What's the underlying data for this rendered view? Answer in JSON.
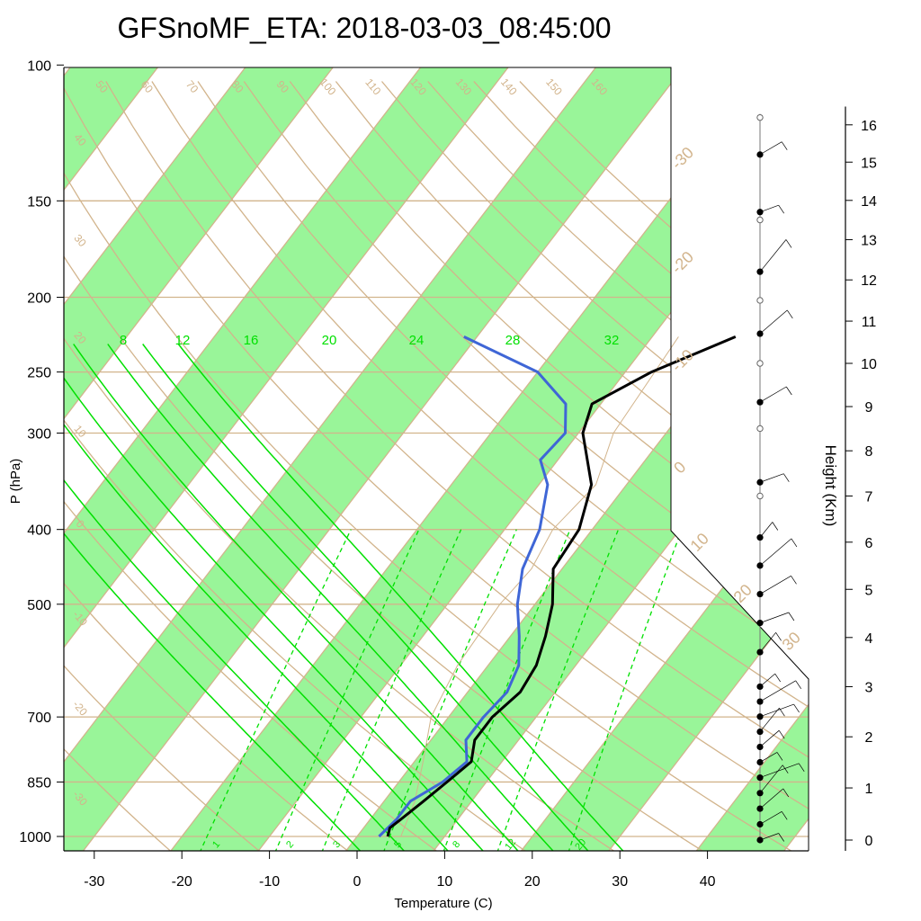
{
  "title": "GFSnoMF_ETA: 2018-03-03_08:45:00",
  "colors": {
    "band": "#99f599",
    "grid": "#d2b48c",
    "adiabat": "#00e000",
    "temperature": "#000000",
    "dewpoint": "#3f66d6",
    "wind": "#000000"
  },
  "chart_data": {
    "type": "skew-t log-p",
    "xlabel": "Temperature (C)",
    "ylabel": "P (hPa)",
    "y2label": "Height (Km)",
    "temp_ticks": [
      "-30",
      "-20",
      "-10",
      "0",
      "10",
      "20",
      "30",
      "40"
    ],
    "pressure_ticks": [
      "100",
      "150",
      "200",
      "250",
      "300",
      "400",
      "500",
      "700",
      "850",
      "1000"
    ],
    "height_ticks": [
      "0",
      "1",
      "2",
      "3",
      "4",
      "5",
      "6",
      "7",
      "8",
      "9",
      "10",
      "11",
      "12",
      "13",
      "14",
      "15",
      "16"
    ],
    "isotherm_labels_top": [
      "50",
      "60",
      "70",
      "80",
      "90",
      "100",
      "110",
      "120",
      "130",
      "140",
      "150",
      "160"
    ],
    "isotherm_labels_left": [
      "40",
      "30",
      "20",
      "10",
      "0",
      "-10",
      "-20",
      "-30"
    ],
    "isotherm_labels_right": [
      "-30",
      "-20",
      "-10",
      "0",
      "10",
      "20",
      "30"
    ],
    "moist_adiabat_labels": [
      "8",
      "12",
      "16",
      "20",
      "24",
      "28",
      "32"
    ],
    "mixing_ratio_labels": [
      "1",
      "2",
      "3",
      "5",
      "8",
      "12",
      "20"
    ],
    "pressure_range_hpa": [
      100,
      1050
    ],
    "temperature_range_c": [
      -34,
      36
    ],
    "log_pressure_axis": true,
    "temperature_profile": [
      {
        "p": 1000,
        "t": 3.5
      },
      {
        "p": 975,
        "t": 3.0
      },
      {
        "p": 950,
        "t": 3.5
      },
      {
        "p": 900,
        "t": 4.5
      },
      {
        "p": 850,
        "t": 5.5
      },
      {
        "p": 800,
        "t": 6.5
      },
      {
        "p": 750,
        "t": 5.0
      },
      {
        "p": 700,
        "t": 5.0
      },
      {
        "p": 650,
        "t": 6.0
      },
      {
        "p": 600,
        "t": 5.5
      },
      {
        "p": 550,
        "t": 4.0
      },
      {
        "p": 500,
        "t": 2.0
      },
      {
        "p": 450,
        "t": -1.0
      },
      {
        "p": 400,
        "t": -1.5
      },
      {
        "p": 350,
        "t": -4.0
      },
      {
        "p": 300,
        "t": -9.5
      },
      {
        "p": 275,
        "t": -11.0
      },
      {
        "p": 250,
        "t": -7.0
      },
      {
        "p": 225,
        "t": -0.5
      }
    ],
    "dewpoint_profile": [
      {
        "p": 1000,
        "t": 2.5
      },
      {
        "p": 950,
        "t": 3.0
      },
      {
        "p": 900,
        "t": 3.0
      },
      {
        "p": 850,
        "t": 5.0
      },
      {
        "p": 800,
        "t": 6.0
      },
      {
        "p": 750,
        "t": 4.0
      },
      {
        "p": 700,
        "t": 4.0
      },
      {
        "p": 650,
        "t": 4.5
      },
      {
        "p": 600,
        "t": 3.5
      },
      {
        "p": 550,
        "t": 1.0
      },
      {
        "p": 500,
        "t": -2.0
      },
      {
        "p": 450,
        "t": -4.5
      },
      {
        "p": 400,
        "t": -6.0
      },
      {
        "p": 350,
        "t": -9.0
      },
      {
        "p": 325,
        "t": -12.0
      },
      {
        "p": 300,
        "t": -11.5
      },
      {
        "p": 275,
        "t": -14.0
      },
      {
        "p": 250,
        "t": -20.0
      },
      {
        "p": 225,
        "t": -31.5
      }
    ],
    "parcel_profile": [
      {
        "p": 1000,
        "t": 5.0
      },
      {
        "p": 900,
        "t": 3.5
      },
      {
        "p": 800,
        "t": 1.0
      },
      {
        "p": 700,
        "t": -2.0
      },
      {
        "p": 600,
        "t": -3.5
      },
      {
        "p": 500,
        "t": -4.0
      },
      {
        "p": 450,
        "t": -3.5
      },
      {
        "p": 400,
        "t": -4.5
      },
      {
        "p": 350,
        "t": -3.5
      },
      {
        "p": 300,
        "t": -6.0
      },
      {
        "p": 225,
        "t": -7.0
      }
    ],
    "wind_heights_km": [
      0,
      0.3,
      0.6,
      0.9,
      1.2,
      1.5,
      1.8,
      2.1,
      2.4,
      2.7,
      3.0,
      3.7,
      4.3,
      4.9,
      5.5,
      6.1,
      7.3,
      9.1,
      10.7,
      12.2,
      13.7,
      15.2
    ],
    "hodograph_heights_km": [
      7.0,
      8.5,
      10.0,
      11.5,
      13.5,
      16.2
    ]
  }
}
